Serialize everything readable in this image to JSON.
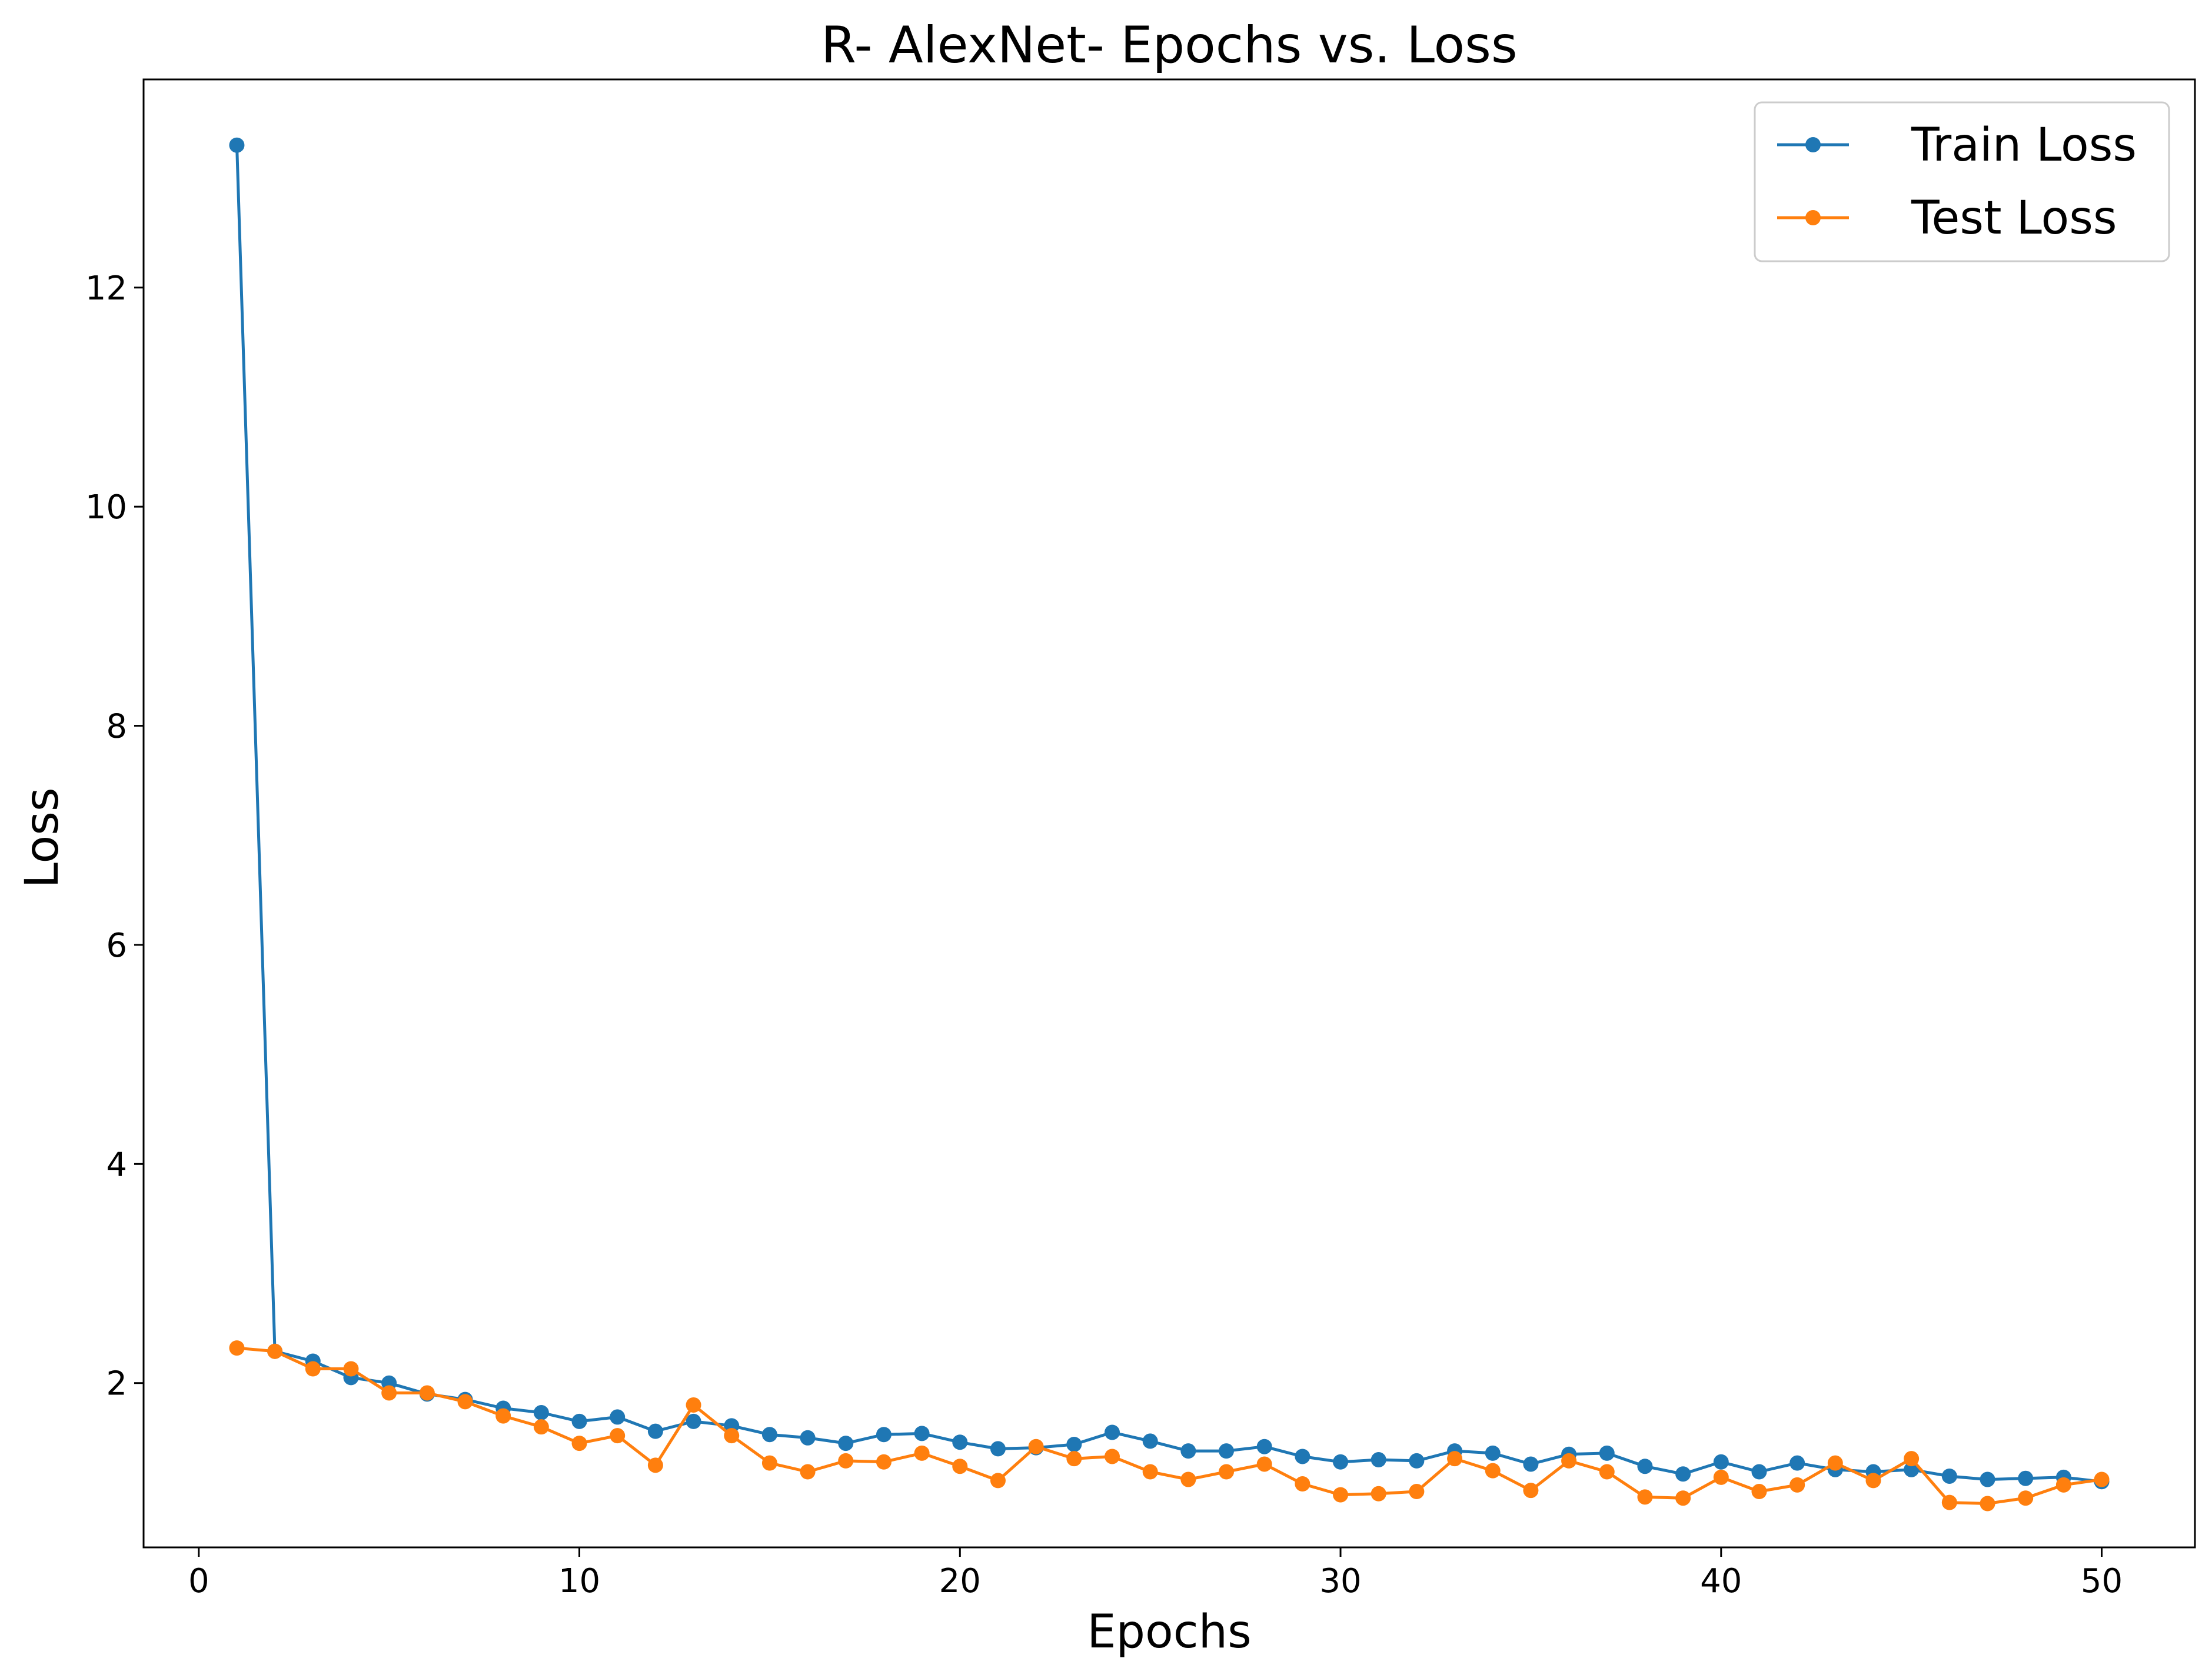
{
  "chart_data": {
    "type": "line",
    "title": "R- AlexNet- Epochs vs. Loss",
    "xlabel": "Epochs",
    "ylabel": "Loss",
    "xlim": [
      -1.45,
      52.45
    ],
    "ylim": [
      0.5,
      13.9
    ],
    "xticks": [
      0,
      10,
      20,
      30,
      40,
      50
    ],
    "yticks": [
      2,
      4,
      6,
      8,
      10,
      12
    ],
    "grid": false,
    "legend_position": "top-right",
    "x": [
      1,
      2,
      3,
      4,
      5,
      6,
      7,
      8,
      9,
      10,
      11,
      12,
      13,
      14,
      15,
      16,
      17,
      18,
      19,
      20,
      21,
      22,
      23,
      24,
      25,
      26,
      27,
      28,
      29,
      30,
      31,
      32,
      33,
      34,
      35,
      36,
      37,
      38,
      39,
      40,
      41,
      42,
      43,
      44,
      45,
      46,
      47,
      48,
      49,
      50
    ],
    "series": [
      {
        "name": "Train Loss",
        "color": "#1f77b4",
        "values": [
          13.3,
          2.29,
          2.2,
          2.05,
          2.0,
          1.9,
          1.85,
          1.77,
          1.73,
          1.65,
          1.69,
          1.56,
          1.65,
          1.61,
          1.53,
          1.5,
          1.45,
          1.53,
          1.54,
          1.46,
          1.4,
          1.41,
          1.44,
          1.55,
          1.47,
          1.38,
          1.38,
          1.42,
          1.33,
          1.28,
          1.3,
          1.29,
          1.38,
          1.36,
          1.26,
          1.35,
          1.36,
          1.24,
          1.17,
          1.28,
          1.19,
          1.27,
          1.21,
          1.19,
          1.21,
          1.15,
          1.12,
          1.13,
          1.14,
          1.1
        ]
      },
      {
        "name": "Test Loss",
        "color": "#ff7f0e",
        "values": [
          2.32,
          2.29,
          2.13,
          2.13,
          1.91,
          1.91,
          1.83,
          1.7,
          1.6,
          1.45,
          1.52,
          1.25,
          1.8,
          1.52,
          1.27,
          1.19,
          1.29,
          1.28,
          1.36,
          1.24,
          1.11,
          1.42,
          1.31,
          1.33,
          1.19,
          1.12,
          1.19,
          1.26,
          1.08,
          0.98,
          0.99,
          1.01,
          1.31,
          1.2,
          1.02,
          1.29,
          1.19,
          0.96,
          0.95,
          1.14,
          1.01,
          1.07,
          1.27,
          1.11,
          1.31,
          0.91,
          0.9,
          0.95,
          1.07,
          1.12
        ]
      }
    ]
  }
}
